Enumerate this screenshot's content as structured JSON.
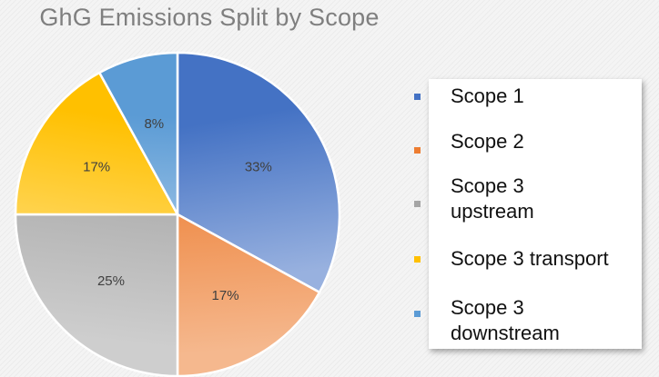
{
  "chart_data": {
    "type": "pie",
    "title": "GhG Emissions Split by Scope",
    "slices": [
      {
        "label": "Scope 1",
        "value": 33,
        "display": "33%",
        "color": "#4472c4"
      },
      {
        "label": "Scope 2",
        "value": 17,
        "display": "17%",
        "color": "#ed7d31"
      },
      {
        "label": "Scope 3 upstream",
        "value": 25,
        "display": "25%",
        "color": "#a5a5a5"
      },
      {
        "label": "Scope 3 transport",
        "value": 17,
        "display": "17%",
        "color": "#ffc000"
      },
      {
        "label": "Scope 3 downstream",
        "value": 8,
        "display": "8%",
        "color": "#5b9bd5"
      }
    ],
    "legend": {
      "position": "right",
      "items": [
        {
          "line1": "Scope 1",
          "line2": ""
        },
        {
          "line1": "Scope 2",
          "line2": ""
        },
        {
          "line1": "Scope 3",
          "line2": "upstream"
        },
        {
          "line1": "Scope 3 transport",
          "line2": ""
        },
        {
          "line1": "Scope 3",
          "line2": "downstream"
        }
      ]
    }
  }
}
